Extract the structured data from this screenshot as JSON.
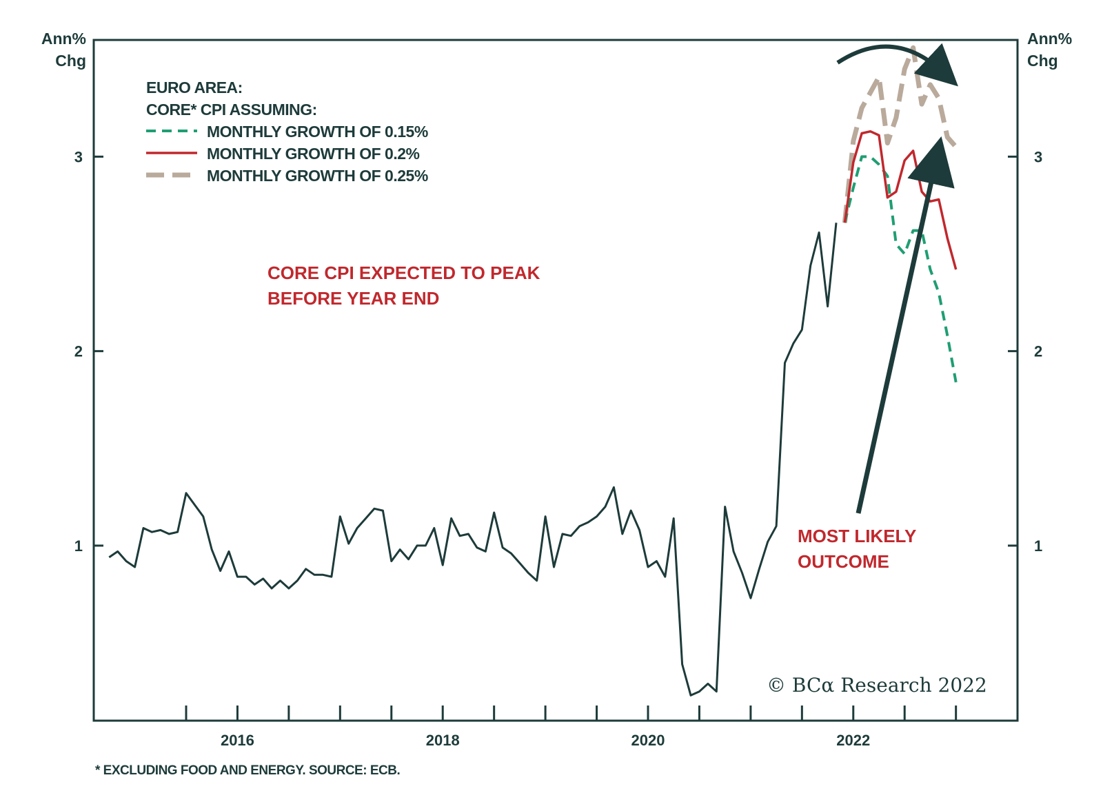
{
  "chart_data": {
    "type": "line",
    "y_unit_left": [
      "Ann%",
      "Chg"
    ],
    "y_unit_right": [
      "Ann%",
      "Chg"
    ],
    "ylim": [
      0.1,
      3.6
    ],
    "yticks": [
      1,
      2,
      3
    ],
    "ytick_labels": [
      "1",
      "2",
      "3"
    ],
    "xlim": [
      2014.6,
      2023.6
    ],
    "xticks": [
      2015.5,
      2016,
      2016.5,
      2017,
      2017.5,
      2018,
      2018.5,
      2019,
      2019.5,
      2020,
      2020.5,
      2021,
      2021.5,
      2022,
      2022.5,
      2023
    ],
    "xtick_labels": [
      {
        "x": 2016,
        "label": "2016"
      },
      {
        "x": 2018,
        "label": "2018"
      },
      {
        "x": 2020,
        "label": "2020"
      },
      {
        "x": 2022,
        "label": "2022"
      }
    ],
    "legend": {
      "title": [
        "EURO AREA:",
        "CORE* CPI ASSUMING:"
      ],
      "placement": "top-left"
    },
    "series": [
      {
        "name": "",
        "style": "solid",
        "color": "#1d3b3a",
        "x_start": 2014.75,
        "x_step": 0.0833333,
        "values": [
          0.94,
          0.97,
          0.92,
          0.89,
          1.09,
          1.07,
          1.08,
          1.06,
          1.07,
          1.27,
          1.21,
          1.15,
          0.98,
          0.87,
          0.97,
          0.84,
          0.84,
          0.8,
          0.83,
          0.78,
          0.82,
          0.78,
          0.82,
          0.88,
          0.85,
          0.85,
          0.84,
          1.15,
          1.01,
          1.09,
          1.14,
          1.19,
          1.18,
          0.92,
          0.98,
          0.93,
          1.0,
          1.0,
          1.09,
          0.9,
          1.14,
          1.05,
          1.06,
          0.99,
          0.97,
          1.17,
          0.99,
          0.96,
          0.91,
          0.86,
          0.82,
          1.15,
          0.89,
          1.06,
          1.05,
          1.1,
          1.12,
          1.15,
          1.2,
          1.3,
          1.06,
          1.18,
          1.08,
          0.89,
          0.92,
          0.84,
          1.14,
          0.39,
          0.23,
          0.25,
          0.29,
          0.25,
          1.2,
          0.97,
          0.86,
          0.73,
          0.88,
          1.02,
          1.1,
          1.94,
          2.04,
          2.11,
          2.44,
          2.61,
          2.23,
          2.66
        ]
      },
      {
        "name": "MONTHLY GROWTH OF 0.15%",
        "style": "dashed",
        "color": "#1f9e73",
        "x": [
          2021.917,
          2022.0,
          2022.083,
          2022.167,
          2022.25,
          2022.333,
          2022.417,
          2022.5,
          2022.583,
          2022.667,
          2022.75,
          2022.833,
          2022.917,
          2023.0
        ],
        "values": [
          2.66,
          2.84,
          3.0,
          3.0,
          2.96,
          2.9,
          2.55,
          2.5,
          2.62,
          2.62,
          2.42,
          2.3,
          2.08,
          1.84
        ]
      },
      {
        "name": "MONTHLY GROWTH OF 0.2%",
        "style": "solid",
        "color": "#c0282d",
        "x": [
          2021.917,
          2022.0,
          2022.083,
          2022.167,
          2022.25,
          2022.333,
          2022.417,
          2022.5,
          2022.583,
          2022.667,
          2022.75,
          2022.833,
          2022.917,
          2023.0
        ],
        "values": [
          2.66,
          2.97,
          3.12,
          3.13,
          3.11,
          2.79,
          2.82,
          2.98,
          3.03,
          2.82,
          2.77,
          2.78,
          2.58,
          2.42
        ]
      },
      {
        "name": "MONTHLY GROWTH OF 0.25%",
        "style": "dashed-thick",
        "color": "#b9aa9c",
        "x": [
          2021.917,
          2022.0,
          2022.083,
          2022.167,
          2022.25,
          2022.333,
          2022.417,
          2022.5,
          2022.583,
          2022.667,
          2022.75,
          2022.833,
          2022.917,
          2023.0
        ],
        "values": [
          2.66,
          3.08,
          3.25,
          3.33,
          3.41,
          3.07,
          3.2,
          3.45,
          3.56,
          3.27,
          3.37,
          3.3,
          3.1,
          3.05
        ]
      }
    ],
    "annotations": [
      {
        "text": [
          "CORE CPI EXPECTED TO PEAK",
          "BEFORE YEAR END"
        ]
      },
      {
        "text": [
          "MOST LIKELY",
          "OUTCOME"
        ]
      }
    ]
  },
  "footnote": "* EXCLUDING FOOD AND ENERGY. SOURCE: ECB.",
  "copyright": "© BCα Research 2022",
  "colors": {
    "axis": "#1d3b3a",
    "accent_red": "#c0282d",
    "green": "#1f9e73",
    "beige": "#b9aa9c"
  }
}
